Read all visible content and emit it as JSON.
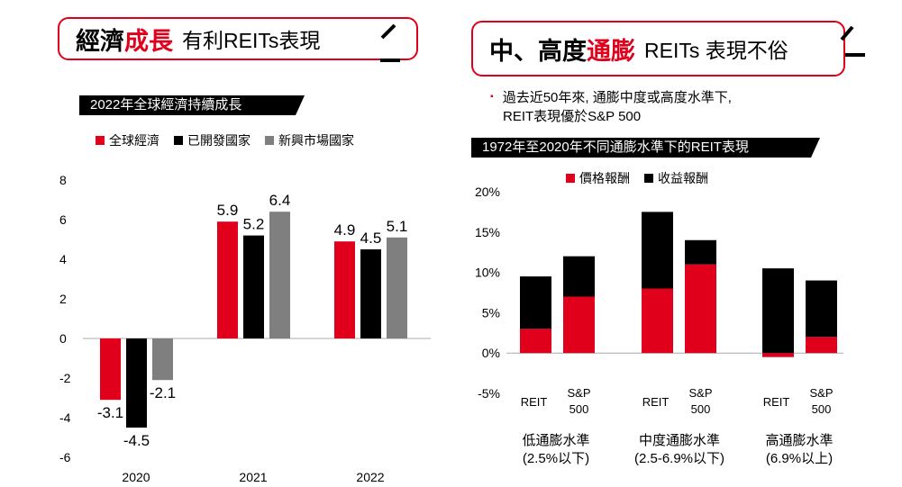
{
  "colors": {
    "red": "#e0001b",
    "black": "#000000",
    "gray": "#7f7f7f"
  },
  "left": {
    "title": {
      "part1": "經濟",
      "part2": "成長",
      "rest": "有利REITs表現"
    },
    "banner": "2022年全球經濟持續成長"
  },
  "right": {
    "title": {
      "part1": "中、高度",
      "part2": "通膨",
      "rest": "REITs 表現不俗"
    },
    "bullet_mark": "▪",
    "bullet_line1": "過去近50年來, 通膨中度或高度水準下,",
    "bullet_line2": "REIT表現優於S&P 500",
    "banner": "1972年至2020年不同通膨水準下的REIT表現"
  },
  "chart_data": [
    {
      "type": "bar",
      "title": "2022年全球經濟持續成長",
      "categories": [
        "2020",
        "2021",
        "2022"
      ],
      "series": [
        {
          "name": "全球經濟",
          "color": "#e0001b",
          "values": [
            -3.1,
            5.9,
            4.9
          ]
        },
        {
          "name": "已開發國家",
          "color": "#000000",
          "values": [
            -4.5,
            5.2,
            4.5
          ]
        },
        {
          "name": "新興市場國家",
          "color": "#7f7f7f",
          "values": [
            -2.1,
            6.4,
            5.1
          ]
        }
      ],
      "data_labels": [
        [
          "-3.1",
          "-4.5",
          "-2.1"
        ],
        [
          "5.9",
          "5.2",
          "6.4"
        ],
        [
          "4.9",
          "4.5",
          "5.1"
        ]
      ],
      "ylim": [
        -6,
        8
      ],
      "yticks": [
        "8",
        "6",
        "4",
        "2",
        "0",
        "-2",
        "-4",
        "-6"
      ]
    },
    {
      "type": "bar",
      "stacked": true,
      "title": "1972年至2020年不同通膨水準下的REIT表現",
      "groups": [
        {
          "line1": "低通膨水準",
          "line2": "(2.5%以下)"
        },
        {
          "line1": "中度通膨水準",
          "line2": "(2.5-6.9%以下)"
        },
        {
          "line1": "高通膨水準",
          "line2": "(6.9%以上)"
        }
      ],
      "bar_labels": [
        {
          "line1": "REIT",
          "line2": ""
        },
        {
          "line1": "S&P",
          "line2": "500"
        }
      ],
      "series": [
        {
          "name": "價格報酬",
          "color": "#e0001b",
          "values": [
            3.0,
            7.0,
            8.0,
            11.0,
            -0.5,
            2.0
          ]
        },
        {
          "name": "收益報酬",
          "color": "#000000",
          "values": [
            6.5,
            5.0,
            9.5,
            3.0,
            10.5,
            7.0
          ]
        }
      ],
      "ylim": [
        -5,
        20
      ],
      "yticks": [
        "20%",
        "15%",
        "10%",
        "5%",
        "0%",
        "-5%"
      ]
    }
  ]
}
